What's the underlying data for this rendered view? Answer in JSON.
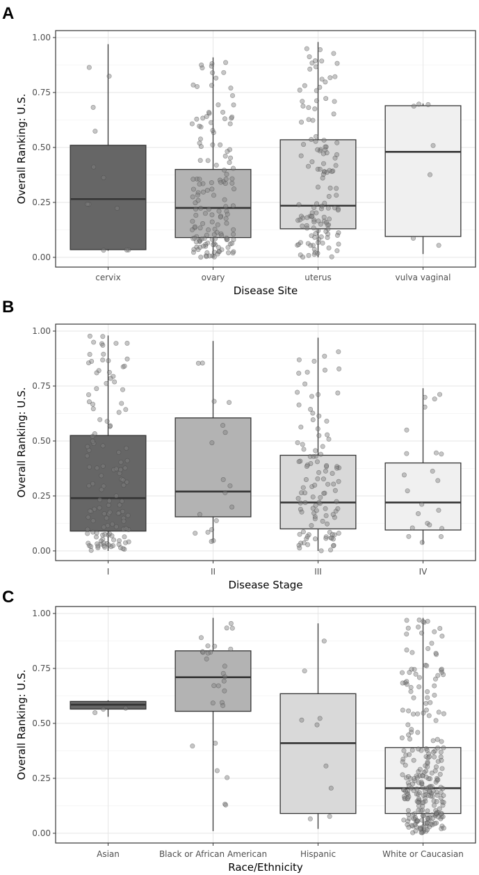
{
  "colors": {
    "grid_major": "#e6e6e6",
    "grid_minor": "#f3f3f3",
    "panel_border": "#333333",
    "median": "#333333",
    "point_fill": "#808080",
    "point_stroke": "#404040"
  },
  "chart_data": [
    {
      "type": "boxplot",
      "panel_label": "A",
      "xlabel": "Disease Site",
      "ylabel": "Overall Ranking: U.S.",
      "ylim": [
        0,
        1
      ],
      "yticks": [
        "0.00",
        "0.25",
        "0.50",
        "0.75",
        "1.00"
      ],
      "grid": true,
      "categories": [
        "cervix",
        "ovary",
        "uterus",
        "vulva vaginal"
      ],
      "fill_colors": [
        "#666666",
        "#b3b3b3",
        "#d9d9d9",
        "#f0f0f0"
      ],
      "boxes": [
        {
          "min": 0.03,
          "q1": 0.035,
          "median": 0.265,
          "q3": 0.51,
          "max": 0.97
        },
        {
          "min": 0.0,
          "q1": 0.09,
          "median": 0.225,
          "q3": 0.4,
          "max": 0.91
        },
        {
          "min": 0.0,
          "q1": 0.13,
          "median": 0.235,
          "q3": 0.535,
          "max": 0.98
        },
        {
          "min": 0.015,
          "q1": 0.095,
          "median": 0.48,
          "q3": 0.69,
          "max": 0.7
        }
      ],
      "point_counts": [
        12,
        150,
        130,
        7
      ]
    },
    {
      "type": "boxplot",
      "panel_label": "B",
      "xlabel": "Disease Stage",
      "ylabel": "Overall Ranking: U.S.",
      "ylim": [
        0,
        1
      ],
      "yticks": [
        "0.00",
        "0.25",
        "0.50",
        "0.75",
        "1.00"
      ],
      "grid": true,
      "categories": [
        "I",
        "II",
        "III",
        "IV"
      ],
      "fill_colors": [
        "#666666",
        "#b3b3b3",
        "#d9d9d9",
        "#f0f0f0"
      ],
      "boxes": [
        {
          "min": 0.0,
          "q1": 0.09,
          "median": 0.24,
          "q3": 0.525,
          "max": 0.98
        },
        {
          "min": 0.04,
          "q1": 0.155,
          "median": 0.27,
          "q3": 0.605,
          "max": 0.955
        },
        {
          "min": 0.0,
          "q1": 0.1,
          "median": 0.22,
          "q3": 0.435,
          "max": 0.97
        },
        {
          "min": 0.03,
          "q1": 0.095,
          "median": 0.22,
          "q3": 0.4,
          "max": 0.74
        }
      ],
      "point_counts": [
        130,
        18,
        110,
        22
      ]
    },
    {
      "type": "boxplot",
      "panel_label": "C",
      "xlabel": "Race/Ethnicity",
      "ylabel": "Overall Ranking: U.S.",
      "ylim": [
        0,
        1
      ],
      "yticks": [
        "0.00",
        "0.25",
        "0.50",
        "0.75",
        "1.00"
      ],
      "grid": true,
      "categories": [
        "Asian",
        "Black or African American",
        "Hispanic",
        "White or Caucasian"
      ],
      "fill_colors": [
        "#666666",
        "#b3b3b3",
        "#d9d9d9",
        "#f0f0f0"
      ],
      "boxes": [
        {
          "min": 0.53,
          "q1": 0.565,
          "median": 0.585,
          "q3": 0.6,
          "max": 0.605
        },
        {
          "min": 0.01,
          "q1": 0.555,
          "median": 0.71,
          "q3": 0.83,
          "max": 0.98
        },
        {
          "min": 0.02,
          "q1": 0.09,
          "median": 0.41,
          "q3": 0.635,
          "max": 0.955
        },
        {
          "min": 0.0,
          "q1": 0.09,
          "median": 0.205,
          "q3": 0.39,
          "max": 0.98
        }
      ],
      "point_counts": [
        3,
        28,
        9,
        260
      ]
    }
  ]
}
